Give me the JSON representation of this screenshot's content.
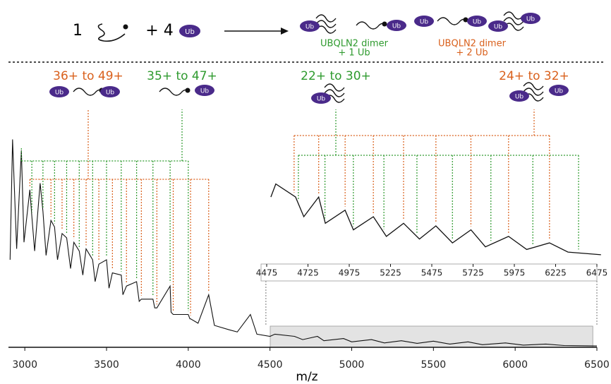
{
  "scheme": {
    "reactant_count": "1",
    "ub_count": "+ 4",
    "ub": "Ub",
    "products": [
      {
        "line1": "UBQLN2 dimer",
        "line2": "+ 1 Ub",
        "color": "#2e9a2e"
      },
      {
        "line1": "UBQLN2 dimer",
        "line2": "+ 2 Ub",
        "color": "#d9601c"
      }
    ]
  },
  "chart_data": {
    "type": "line",
    "xlabel": "m/z",
    "xlim": [
      2900,
      6500
    ],
    "xticks": [
      3000,
      3500,
      4000,
      4500,
      5000,
      5500,
      6000,
      6500
    ],
    "ylim": [
      0,
      100
    ],
    "series": [
      {
        "color": "#111111",
        "x": [
          2910,
          2925,
          2950,
          2979,
          2995,
          3031,
          3043,
          3060,
          3094,
          3111,
          3130,
          3160,
          3182,
          3200,
          3228,
          3256,
          3280,
          3300,
          3333,
          3355,
          3375,
          3415,
          3430,
          3453,
          3500,
          3515,
          3536,
          3590,
          3600,
          3622,
          3684,
          3700,
          3713,
          3784,
          3795,
          3808,
          3889,
          3895,
          3908,
          4000,
          4010,
          4014,
          4060,
          4125,
          4160,
          4250,
          4300,
          4380,
          4420,
          4500,
          4530,
          4650,
          4700,
          4790,
          4830,
          4950,
          5000,
          5121,
          5200,
          5304,
          5400,
          5500,
          5600,
          5712,
          5800,
          5940,
          6050,
          6188,
          6300,
          6500
        ],
        "values": [
          40,
          95,
          45,
          90,
          48,
          72,
          60,
          44,
          75,
          62,
          42,
          58,
          55,
          40,
          52,
          50,
          36,
          48,
          44,
          33,
          45,
          40,
          30,
          38,
          40,
          27,
          34,
          33,
          24,
          28,
          30,
          21,
          22,
          22,
          18,
          18,
          28,
          16,
          15,
          15,
          13,
          13,
          11,
          24,
          10,
          8,
          7,
          15,
          6,
          5,
          6,
          5,
          3.5,
          5,
          3,
          4,
          2.5,
          3.5,
          2,
          3,
          1.8,
          2.8,
          1.5,
          2.5,
          1.2,
          2,
          1,
          1.5,
          0.8,
          0.6
        ]
      }
    ],
    "inset": {
      "xlim": [
        4475,
        6475
      ],
      "xticks": [
        4475,
        4725,
        4975,
        5225,
        5475,
        5725,
        5975,
        6225,
        6475
      ],
      "ylim": [
        0,
        7
      ]
    },
    "ladders": [
      {
        "label": "36+ to 49+",
        "color": "#d9601c",
        "panel": "main",
        "x": [
          3031,
          3094,
          3160,
          3228,
          3300,
          3375,
          3453,
          3536,
          3622,
          3713,
          3808,
          3908,
          4014,
          4125
        ]
      },
      {
        "label": "35+ to 47+",
        "color": "#2e9a2e",
        "panel": "main",
        "x": [
          2979,
          3043,
          3111,
          3182,
          3256,
          3333,
          3415,
          3500,
          3590,
          3684,
          3784,
          3889,
          4000
        ]
      },
      {
        "label": "22+ to 30+",
        "color": "#2e9a2e",
        "panel": "inset",
        "x": [
          4667,
          4828,
          5000,
          5185,
          5385,
          5600,
          5833,
          6087,
          6364
        ]
      },
      {
        "label": "24+ to 32+",
        "color": "#d9601c",
        "panel": "inset",
        "x": [
          4641,
          4790,
          4950,
          5121,
          5304,
          5500,
          5712,
          5940,
          6188
        ]
      }
    ]
  }
}
